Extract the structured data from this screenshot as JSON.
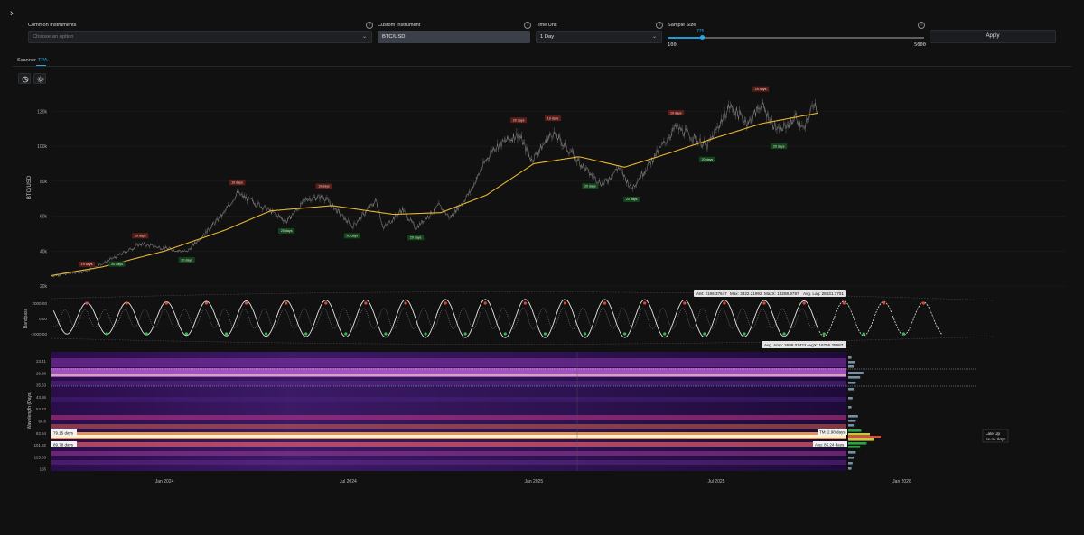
{
  "nav": {
    "expand_glyph": "›"
  },
  "controls": {
    "common_instruments": {
      "label": "Common Instruments",
      "placeholder": "Choose an option"
    },
    "custom_instrument": {
      "label": "Custom Instrument",
      "value": "BTC/USD"
    },
    "time_unit": {
      "label": "Time Unit",
      "value": "1 Day"
    },
    "sample_size": {
      "label": "Sample Size",
      "value": "775",
      "min": "100",
      "max": "5000",
      "fraction": 0.138
    },
    "apply_label": "Apply",
    "help_glyph": "?"
  },
  "tabs": [
    {
      "label": "Scanner",
      "active": false
    },
    {
      "label": "TPA",
      "active": true
    }
  ],
  "colors": {
    "accent": "#2aa7e2",
    "price": "#8a8a8a",
    "ma": "#e8b432",
    "peak": "#e2473a",
    "trough": "#2fbf4a",
    "background": "#111112"
  },
  "icons": {
    "tool_1": "chart-icon",
    "tool_2": "settings-icon"
  },
  "chart_data": [
    {
      "type": "line",
      "ylabel": "BTC/USD",
      "ylim": [
        20000,
        130000
      ],
      "yticks": [
        "20k",
        "40k",
        "60k",
        "80k",
        "100k",
        "120k"
      ],
      "series": [],
      "price": [
        [
          "2023-09-11",
          25800
        ],
        [
          "2023-10-16",
          28500
        ],
        [
          "2023-11-15",
          37000
        ],
        [
          "2023-12-08",
          44000
        ],
        [
          "2024-01-23",
          39500
        ],
        [
          "2024-02-28",
          61000
        ],
        [
          "2024-03-13",
          73000
        ],
        [
          "2024-04-15",
          63000
        ],
        [
          "2024-05-01",
          57000
        ],
        [
          "2024-05-21",
          70000
        ],
        [
          "2024-06-07",
          71000
        ],
        [
          "2024-07-05",
          54000
        ],
        [
          "2024-07-29",
          69000
        ],
        [
          "2024-08-05",
          53000
        ],
        [
          "2024-08-24",
          64000
        ],
        [
          "2024-09-06",
          53000
        ],
        [
          "2024-09-29",
          66000
        ],
        [
          "2024-10-10",
          59000
        ],
        [
          "2024-10-29",
          73000
        ],
        [
          "2024-11-13",
          90000
        ],
        [
          "2024-11-22",
          99000
        ],
        [
          "2024-12-17",
          107000
        ],
        [
          "2024-12-30",
          92000
        ],
        [
          "2025-01-20",
          108000
        ],
        [
          "2025-02-26",
          84000
        ],
        [
          "2025-03-11",
          78000
        ],
        [
          "2025-03-26",
          88000
        ],
        [
          "2025-04-08",
          76000
        ],
        [
          "2025-05-22",
          111000
        ],
        [
          "2025-06-22",
          100000
        ],
        [
          "2025-07-14",
          123000
        ],
        [
          "2025-08-02",
          113000
        ],
        [
          "2025-08-14",
          124000
        ],
        [
          "2025-09-01",
          108000
        ],
        [
          "2025-09-18",
          117000
        ],
        [
          "2025-09-26",
          109000
        ],
        [
          "2025-10-06",
          126000
        ],
        [
          "2025-10-10",
          120000
        ]
      ],
      "moving_average": [
        [
          "2023-09-11",
          26000
        ],
        [
          "2023-11-01",
          31000
        ],
        [
          "2024-01-01",
          40000
        ],
        [
          "2024-03-01",
          52000
        ],
        [
          "2024-04-15",
          63000
        ],
        [
          "2024-06-15",
          66000
        ],
        [
          "2024-08-15",
          61000
        ],
        [
          "2024-10-01",
          62000
        ],
        [
          "2024-11-15",
          72000
        ],
        [
          "2025-01-01",
          90000
        ],
        [
          "2025-02-15",
          94000
        ],
        [
          "2025-04-01",
          88000
        ],
        [
          "2025-05-15",
          96000
        ],
        [
          "2025-07-01",
          105000
        ],
        [
          "2025-08-15",
          113000
        ],
        [
          "2025-10-10",
          119000
        ]
      ],
      "peak_labels": [
        {
          "date": "2023-10-16",
          "label": "19 days"
        },
        {
          "date": "2023-12-08",
          "label": "19 days"
        },
        {
          "date": "2024-03-13",
          "label": "19 days"
        },
        {
          "date": "2024-06-07",
          "label": "19 days"
        },
        {
          "date": "2024-12-17",
          "label": "20 days"
        },
        {
          "date": "2025-01-20",
          "label": "19 days"
        },
        {
          "date": "2025-05-22",
          "label": "19 days"
        },
        {
          "date": "2025-08-14",
          "label": "19 days"
        }
      ],
      "trough_labels": [
        {
          "date": "2023-11-15",
          "label": "20 days"
        },
        {
          "date": "2024-01-23",
          "label": "20 days"
        },
        {
          "date": "2024-05-01",
          "label": "20 days"
        },
        {
          "date": "2024-07-05",
          "label": "20 days"
        },
        {
          "date": "2024-09-06",
          "label": "20 days"
        },
        {
          "date": "2025-02-26",
          "label": "20 days"
        },
        {
          "date": "2025-04-08",
          "label": "20 days"
        },
        {
          "date": "2025-06-22",
          "label": "20 days"
        },
        {
          "date": "2025-09-01",
          "label": "20 days"
        }
      ]
    },
    {
      "type": "line",
      "ylabel": "Bandpass",
      "ylim": [
        -2600,
        2600
      ],
      "yticks": [
        "2000.00",
        "0.00",
        "-2000.00"
      ],
      "series": [],
      "cycle_days": 39.5,
      "stats_top": {
        "am": "AM: 2196.37647",
        "max": "Max: 3322.21992",
        "max_x": "MaxX: 13288.9797",
        "avg_lag": "Avg. Lag: 28531.7701"
      },
      "stats_bottom": {
        "avg_amp": "Avg. Amp: 2688.01422",
        "avg_x": "AvgX: 16756.25687"
      }
    },
    {
      "type": "heatmap",
      "ylabel": "Wavelength (Days)",
      "yticks": [
        "23.41",
        "29.88",
        "35.63",
        "43.86",
        "54.23",
        "66.6",
        "82.54",
        "101.82",
        "125.63",
        "155"
      ],
      "xticks": [
        "Jan 2024",
        "Jul 2024",
        "Jan 2025",
        "Jul 2025",
        "Jan 2026"
      ],
      "markers": [
        {
          "label": "79.15 days"
        },
        {
          "label": "89.78 days"
        }
      ],
      "annotations": {
        "tm": "TM: 2.98 days",
        "avg": "Avg: 85.24 days",
        "late_up_title": "Late Up",
        "late_up_value": "82.42 days"
      }
    }
  ]
}
